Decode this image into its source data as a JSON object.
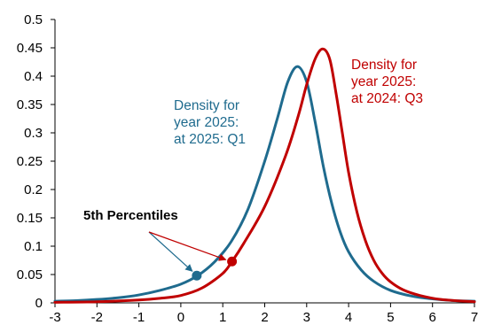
{
  "chart_data": {
    "type": "line",
    "title": "",
    "xlabel": "",
    "ylabel": "",
    "xlim": [
      -3,
      7
    ],
    "ylim": [
      0,
      0.5
    ],
    "x_ticks": [
      "-3",
      "-2",
      "-1",
      "0",
      "1",
      "2",
      "3",
      "4",
      "5",
      "6",
      "7"
    ],
    "y_ticks": [
      "0",
      "0.05",
      "0.1",
      "0.15",
      "0.2",
      "0.25",
      "0.3",
      "0.35",
      "0.4",
      "0.45",
      "0.5"
    ],
    "grid": false,
    "legend": "none",
    "series": [
      {
        "color": "#1f6b8e",
        "label_lines": [
          "Density for",
          "year 2025:",
          "at 2025: Q1"
        ],
        "percentile_marker": {
          "x": 0.38,
          "y": 0.048
        },
        "points": [
          [
            -3.0,
            0.003
          ],
          [
            -2.5,
            0.004
          ],
          [
            -2.0,
            0.006
          ],
          [
            -1.5,
            0.009
          ],
          [
            -1.0,
            0.014
          ],
          [
            -0.5,
            0.022
          ],
          [
            0.0,
            0.033
          ],
          [
            0.4,
            0.048
          ],
          [
            0.8,
            0.072
          ],
          [
            1.2,
            0.108
          ],
          [
            1.6,
            0.165
          ],
          [
            2.0,
            0.25
          ],
          [
            2.3,
            0.325
          ],
          [
            2.55,
            0.39
          ],
          [
            2.78,
            0.417
          ],
          [
            3.0,
            0.39
          ],
          [
            3.2,
            0.32
          ],
          [
            3.4,
            0.24
          ],
          [
            3.6,
            0.175
          ],
          [
            3.8,
            0.125
          ],
          [
            4.0,
            0.09
          ],
          [
            4.3,
            0.058
          ],
          [
            4.6,
            0.038
          ],
          [
            5.0,
            0.022
          ],
          [
            5.5,
            0.012
          ],
          [
            6.0,
            0.007
          ],
          [
            6.5,
            0.004
          ],
          [
            7.0,
            0.003
          ]
        ]
      },
      {
        "color": "#c00000",
        "label_lines": [
          "Density for",
          "year 2025:",
          "at 2024: Q3"
        ],
        "percentile_marker": {
          "x": 1.22,
          "y": 0.073
        },
        "points": [
          [
            -3.0,
            0.001
          ],
          [
            -2.0,
            0.002
          ],
          [
            -1.0,
            0.005
          ],
          [
            -0.5,
            0.008
          ],
          [
            0.0,
            0.013
          ],
          [
            0.5,
            0.026
          ],
          [
            1.0,
            0.052
          ],
          [
            1.22,
            0.073
          ],
          [
            1.5,
            0.105
          ],
          [
            2.0,
            0.17
          ],
          [
            2.5,
            0.26
          ],
          [
            2.8,
            0.33
          ],
          [
            3.0,
            0.385
          ],
          [
            3.2,
            0.43
          ],
          [
            3.38,
            0.448
          ],
          [
            3.55,
            0.43
          ],
          [
            3.7,
            0.37
          ],
          [
            3.85,
            0.3
          ],
          [
            4.0,
            0.23
          ],
          [
            4.2,
            0.16
          ],
          [
            4.4,
            0.11
          ],
          [
            4.6,
            0.075
          ],
          [
            4.8,
            0.052
          ],
          [
            5.0,
            0.037
          ],
          [
            5.3,
            0.023
          ],
          [
            5.7,
            0.013
          ],
          [
            6.2,
            0.006
          ],
          [
            7.0,
            0.002
          ]
        ]
      }
    ],
    "annotation": {
      "text": "5th Percentiles",
      "arrow_color_1": "#1f6b8e",
      "arrow_color_2": "#c00000"
    }
  }
}
